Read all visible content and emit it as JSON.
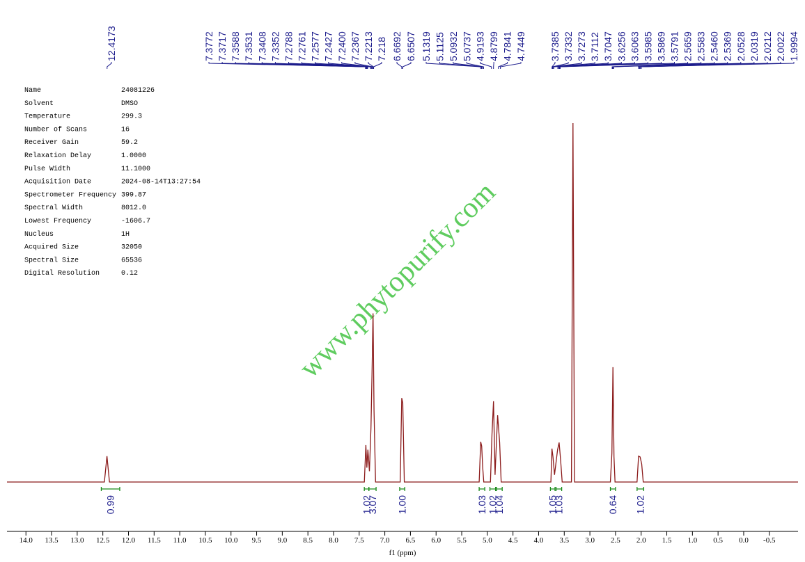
{
  "chart_data": {
    "type": "spectrum",
    "xlabel": "f1 (ppm)",
    "watermark": "www.phytopurify.com",
    "color": "#8b1a1a",
    "label_color": "#1c1c8c",
    "integral_color": "#1a8c1a",
    "xlim": [
      14.37,
      -1.06
    ],
    "ylim": [
      0,
      100
    ],
    "xticks": [
      {
        "value": 14,
        "label": "14.0"
      },
      13.5,
      {
        "value": 13,
        "label": "13.0"
      },
      12.5,
      {
        "value": 12,
        "label": "12.0"
      },
      11.5,
      {
        "value": 11,
        "label": "11.0"
      },
      10.5,
      {
        "value": 10,
        "label": "10.0"
      },
      9.5,
      {
        "value": 9,
        "label": "9.0"
      },
      8.5,
      {
        "value": 8,
        "label": "8.0"
      },
      7.5,
      {
        "value": 7,
        "label": "7.0"
      },
      6.5,
      {
        "value": 6,
        "label": "6.0"
      },
      5.5,
      {
        "value": 5,
        "label": "5.0"
      },
      4.5,
      {
        "value": 4,
        "label": "4.0"
      },
      3.5,
      {
        "value": 3,
        "label": "3.0"
      },
      2.5,
      {
        "value": 2,
        "label": "2.0"
      },
      1.5,
      {
        "value": 1,
        "label": "1.0"
      },
      0.5,
      {
        "value": 0,
        "label": "0.0"
      },
      -0.5
    ],
    "x": [
      14.37,
      12.47,
      12.42,
      12.37,
      7.4,
      7.37,
      7.35,
      7.33,
      7.3,
      7.27,
      7.25,
      7.23,
      7.21,
      7.18,
      6.7,
      6.67,
      6.65,
      6.62,
      5.16,
      5.13,
      5.11,
      5.09,
      5.07,
      4.94,
      4.91,
      4.88,
      4.85,
      4.82,
      4.8,
      4.76,
      4.73,
      3.76,
      3.74,
      3.72,
      3.69,
      3.63,
      3.6,
      3.57,
      3.54,
      3.36,
      3.33,
      3.3,
      2.6,
      2.57,
      2.55,
      2.53,
      2.51,
      2.08,
      2.05,
      2.02,
      1.99,
      1.96,
      -1.06
    ],
    "values": [
      0,
      0,
      7.2,
      0,
      0,
      10.3,
      4,
      9,
      3,
      15,
      30,
      47,
      20,
      0,
      0,
      23.4,
      22,
      0,
      0,
      11.2,
      10,
      4,
      0,
      0,
      13.2,
      22.5,
      2,
      12,
      18.6,
      11,
      0,
      0,
      9.3,
      7,
      2,
      9,
      11,
      6,
      0,
      0,
      100,
      0,
      0,
      8,
      32,
      7,
      0,
      0,
      7.2,
      7,
      5,
      0,
      0
    ],
    "peak_labels": [
      12.4173,
      7.3772,
      7.3717,
      7.3588,
      7.3531,
      7.3408,
      7.3352,
      7.2788,
      7.2761,
      7.2577,
      7.2427,
      {
        "value": 7.24,
        "label": "7.2400"
      },
      7.2367,
      7.2213,
      7.218,
      6.6692,
      6.6507,
      5.1319,
      5.1125,
      5.0932,
      5.0737,
      4.9193,
      4.8799,
      4.7841,
      4.7449,
      3.7385,
      3.7332,
      3.7273,
      3.7112,
      3.7047,
      3.6256,
      3.6063,
      3.5985,
      3.5869,
      3.5791,
      2.5659,
      2.5583,
      {
        "value": 2.546,
        "label": "2.5460"
      },
      2.5369,
      2.0528,
      2.0319,
      2.0212,
      2.0022,
      1.9994
    ],
    "integrals": [
      {
        "from": 12.53,
        "to": 12.17,
        "value": 0.99
      },
      {
        "from": 7.4,
        "to": 7.31,
        "value": 1.02
      },
      {
        "from": 7.31,
        "to": 7.17,
        "value": 3.07
      },
      {
        "from": 6.71,
        "to": 6.61,
        "value": {
          "value": 1,
          "label": "1.00"
        }
      },
      {
        "from": 5.16,
        "to": 5.05,
        "value": 1.03
      },
      {
        "from": 4.95,
        "to": 4.84,
        "value": 1.02
      },
      {
        "from": 4.82,
        "to": 4.71,
        "value": 1.04
      },
      {
        "from": 3.77,
        "to": 3.68,
        "value": 1.05
      },
      {
        "from": 3.66,
        "to": 3.55,
        "value": 1.03
      },
      {
        "from": 2.6,
        "to": 2.5,
        "value": 0.64
      },
      {
        "from": 2.08,
        "to": 1.95,
        "value": 1.02
      }
    ],
    "parameters": [
      [
        "Name",
        "24081226"
      ],
      [
        "Solvent",
        "DMSO"
      ],
      [
        "Temperature",
        "299.3"
      ],
      [
        "Number of Scans",
        "16"
      ],
      [
        "Receiver Gain",
        "59.2"
      ],
      [
        "Relaxation Delay",
        "1.0000"
      ],
      [
        "Pulse Width",
        "11.1000"
      ],
      [
        "Acquisition Date",
        "2024-08-14T13:27:54"
      ],
      [
        "Spectrometer Frequency",
        "399.87"
      ],
      [
        "Spectral Width",
        "8012.0"
      ],
      [
        "Lowest Frequency",
        "-1606.7"
      ],
      [
        "Nucleus",
        "1H"
      ],
      [
        "Acquired Size",
        "32050"
      ],
      [
        "Spectral Size",
        "65536"
      ],
      [
        "Digital Resolution",
        "0.12"
      ]
    ]
  }
}
